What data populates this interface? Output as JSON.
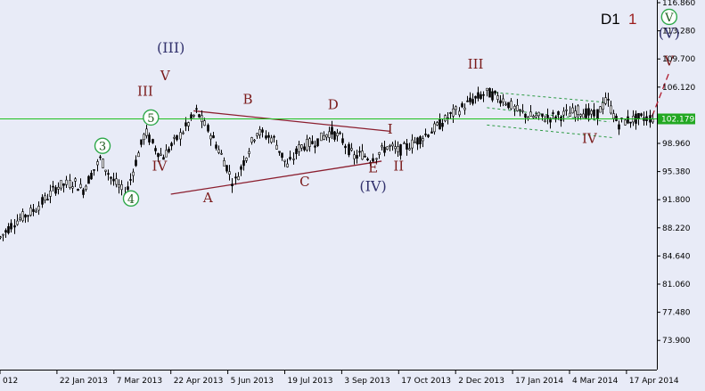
{
  "chart_data": {
    "type": "candlestick",
    "timeframe_label": "D1",
    "wave_degree_label": "1",
    "current_price_label": "102.179",
    "current_price": 102.179,
    "ylim": [
      70.5,
      116.9
    ],
    "y_ticks": [
      {
        "value": 116.86,
        "label": "116.860"
      },
      {
        "value": 113.28,
        "label": "113.280"
      },
      {
        "value": 109.7,
        "label": "109.700"
      },
      {
        "value": 106.12,
        "label": "106.120"
      },
      {
        "value": 98.96,
        "label": "98.960"
      },
      {
        "value": 95.38,
        "label": "95.380"
      },
      {
        "value": 91.8,
        "label": "91.800"
      },
      {
        "value": 88.22,
        "label": "88.220"
      },
      {
        "value": 84.64,
        "label": "84.640"
      },
      {
        "value": 81.06,
        "label": "81.060"
      },
      {
        "value": 77.48,
        "label": "77.480"
      },
      {
        "value": 73.9,
        "label": "73.900"
      }
    ],
    "x_ticks": [
      {
        "index": 0,
        "label": "012"
      },
      {
        "index": 1,
        "label": "22 Jan 2013"
      },
      {
        "index": 2,
        "label": "7 Mar 2013"
      },
      {
        "index": 3,
        "label": "22 Apr 2013"
      },
      {
        "index": 4,
        "label": "5 Jun 2013"
      },
      {
        "index": 5,
        "label": "19 Jul 2013"
      },
      {
        "index": 6,
        "label": "3 Sep 2013"
      },
      {
        "index": 7,
        "label": "17 Oct 2013"
      },
      {
        "index": 8,
        "label": "2 Dec 2013"
      },
      {
        "index": 9,
        "label": "17 Jan 2014"
      },
      {
        "index": 10,
        "label": "4 Mar 2014"
      },
      {
        "index": 11,
        "label": "17 Apr 2014"
      }
    ],
    "price_path": [
      [
        0,
        87.0
      ],
      [
        0.25,
        89.0
      ],
      [
        0.6,
        90.5
      ],
      [
        1.0,
        93.5
      ],
      [
        1.3,
        94.0
      ],
      [
        1.45,
        93.0
      ],
      [
        1.75,
        97.0
      ],
      [
        1.95,
        94.5
      ],
      [
        2.2,
        92.5
      ],
      [
        2.35,
        96.0
      ],
      [
        2.55,
        100.5
      ],
      [
        2.7,
        98.5
      ],
      [
        2.85,
        97.2
      ],
      [
        3.1,
        99.5
      ],
      [
        3.45,
        103.0
      ],
      [
        3.7,
        100.0
      ],
      [
        3.95,
        96.5
      ],
      [
        4.1,
        93.8
      ],
      [
        4.35,
        98.0
      ],
      [
        4.5,
        100.5
      ],
      [
        4.8,
        99.5
      ],
      [
        5.05,
        96.0
      ],
      [
        5.25,
        98.5
      ],
      [
        5.55,
        99.2
      ],
      [
        5.8,
        100.5
      ],
      [
        6.0,
        99.5
      ],
      [
        6.2,
        97.2
      ],
      [
        6.35,
        97.6
      ],
      [
        6.5,
        97.0
      ],
      [
        6.8,
        98.6
      ],
      [
        7.0,
        98.0
      ],
      [
        7.3,
        99.2
      ],
      [
        7.65,
        101.0
      ],
      [
        8.0,
        103.0
      ],
      [
        8.3,
        104.5
      ],
      [
        8.55,
        105.4
      ],
      [
        8.85,
        104.5
      ],
      [
        9.05,
        103.2
      ],
      [
        9.3,
        102.4
      ],
      [
        9.6,
        102.2
      ],
      [
        9.9,
        102.6
      ],
      [
        10.15,
        103.1
      ],
      [
        10.45,
        102.5
      ],
      [
        10.65,
        104.5
      ],
      [
        10.85,
        101.4
      ],
      [
        11.0,
        101.9
      ],
      [
        11.3,
        102.2
      ],
      [
        11.45,
        102.2
      ]
    ],
    "projection": {
      "from": [
        11.45,
        102.4
      ],
      "to": [
        11.75,
        108.0
      ]
    },
    "horizontal_line": 102.179,
    "annotations": [
      {
        "text": "III",
        "style": "red",
        "index": 2.55,
        "price": 105.0
      },
      {
        "text": "IV",
        "style": "red",
        "index": 2.8,
        "price": 95.5
      },
      {
        "text": "(III)",
        "style": "navy",
        "index": 3.0,
        "price": 110.5
      },
      {
        "text": "V",
        "style": "red",
        "index": 2.9,
        "price": 107.0
      },
      {
        "text": "B",
        "style": "red",
        "index": 4.35,
        "price": 104.0
      },
      {
        "text": "D",
        "style": "red",
        "index": 5.85,
        "price": 103.3
      },
      {
        "text": "I",
        "style": "red",
        "index": 6.85,
        "price": 100.2
      },
      {
        "text": "A",
        "style": "red",
        "index": 3.65,
        "price": 91.5
      },
      {
        "text": "C",
        "style": "red",
        "index": 5.35,
        "price": 93.5
      },
      {
        "text": "E",
        "style": "red",
        "index": 6.55,
        "price": 95.3
      },
      {
        "text": "II",
        "style": "red",
        "index": 7.0,
        "price": 95.5
      },
      {
        "text": "(IV)",
        "style": "navy",
        "index": 6.55,
        "price": 92.9
      },
      {
        "text": "III",
        "style": "red",
        "index": 8.35,
        "price": 108.5
      },
      {
        "text": "IV",
        "style": "red",
        "index": 10.35,
        "price": 99.0
      },
      {
        "text": "(V)",
        "style": "navy",
        "index": 11.75,
        "price": 112.4
      },
      {
        "text": "V",
        "style": "red",
        "index": 11.75,
        "price": 108.9
      }
    ],
    "circled_labels": [
      {
        "text": "3",
        "index": 1.8,
        "price": 98.2
      },
      {
        "text": "5",
        "index": 2.65,
        "price": 101.8
      },
      {
        "text": "4",
        "index": 2.3,
        "price": 91.5
      },
      {
        "text": "V",
        "index": 11.75,
        "price": 114.6
      }
    ],
    "triangle_lines": [
      {
        "from": [
          3.4,
          103.1
        ],
        "to": [
          6.85,
          100.5
        ]
      },
      {
        "from": [
          3.0,
          92.5
        ],
        "to": [
          6.7,
          96.7
        ]
      }
    ],
    "channel_lines": [
      {
        "from": [
          8.6,
          105.5
        ],
        "to": [
          10.6,
          104.2
        ]
      },
      {
        "from": [
          8.55,
          103.5
        ],
        "to": [
          10.7,
          101.7
        ]
      },
      {
        "from": [
          8.55,
          101.3
        ],
        "to": [
          10.75,
          99.7
        ]
      }
    ]
  }
}
